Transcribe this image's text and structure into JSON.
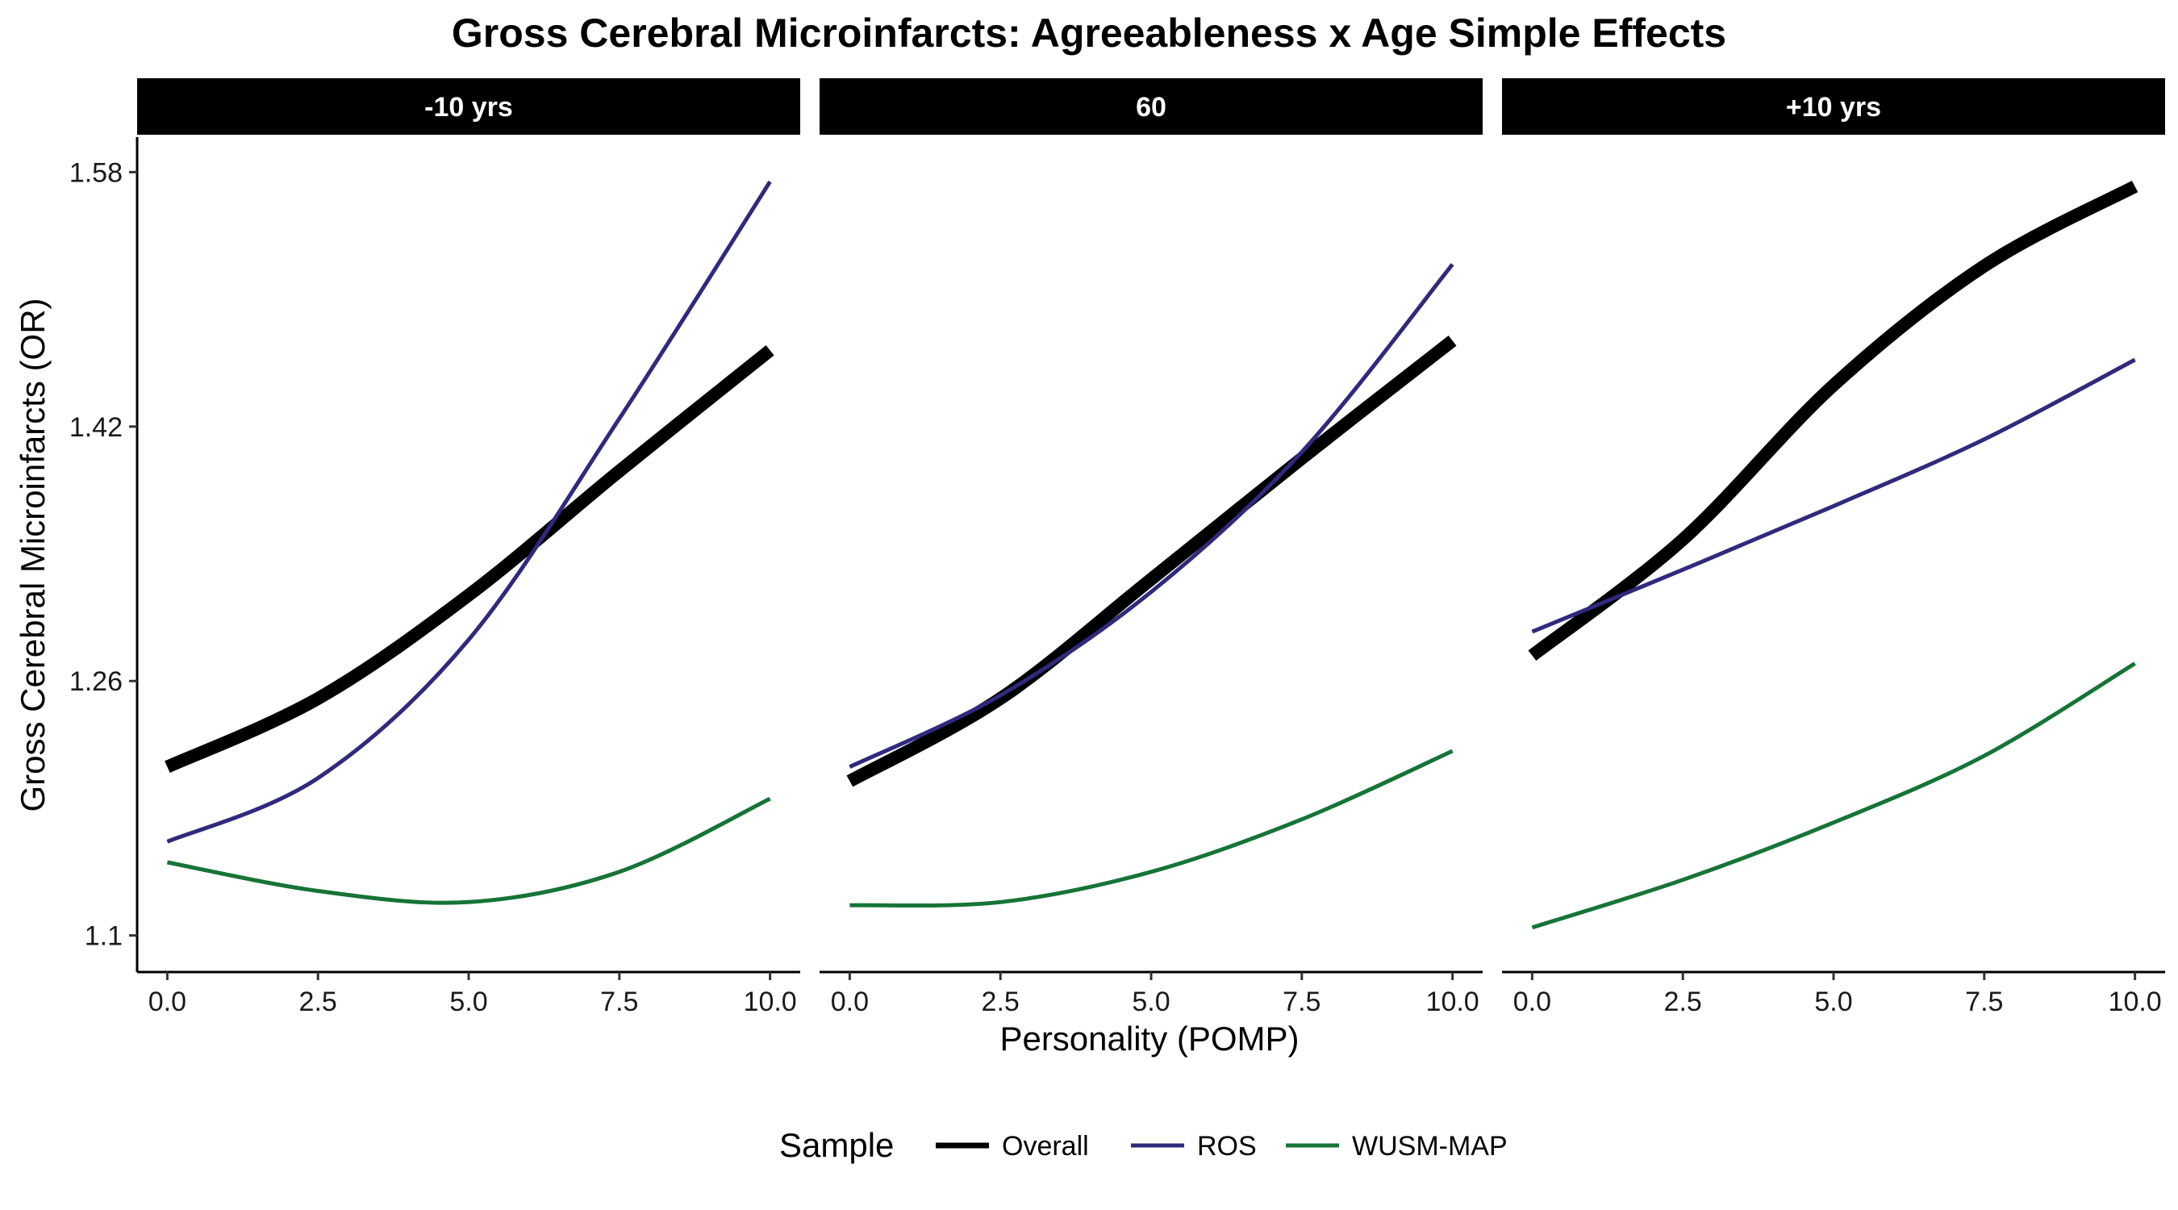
{
  "chart_data": {
    "type": "line",
    "title": "Gross Cerebral Microinfarcts: Agreeableness x Age Simple Effects",
    "xlabel": "Personality (POMP)",
    "ylabel": "Gross Cerebral Microinfarcts (OR)",
    "xlim": [
      -0.5,
      10.5
    ],
    "ylim": [
      1.077,
      1.602
    ],
    "x_ticks": [
      0,
      2.5,
      5,
      7.5,
      10
    ],
    "x_tick_labels": [
      "0.0",
      "2.5",
      "5.0",
      "7.5",
      "10.0"
    ],
    "y_ticks": [
      1.1,
      1.26,
      1.42,
      1.58
    ],
    "y_tick_labels": [
      "1.1",
      "1.26",
      "1.42",
      "1.58"
    ],
    "grid": false,
    "legend": {
      "title": "Sample",
      "position": "bottom",
      "entries": [
        "Overall",
        "ROS",
        "WUSM-MAP"
      ]
    },
    "colors": {
      "Overall": "#000000",
      "ROS": "#2e2a7d",
      "WUSM-MAP": "#167436"
    },
    "x": [
      0,
      2.5,
      5,
      7.5,
      10
    ],
    "panels": [
      {
        "label": "-10 yrs",
        "series": [
          {
            "name": "Overall",
            "values": [
              1.206,
              1.249,
              1.314,
              1.392,
              1.468
            ]
          },
          {
            "name": "ROS",
            "values": [
              1.159,
              1.199,
              1.286,
              1.425,
              1.574
            ]
          },
          {
            "name": "WUSM-MAP",
            "values": [
              1.146,
              1.128,
              1.121,
              1.14,
              1.186
            ]
          }
        ]
      },
      {
        "label": "60",
        "series": [
          {
            "name": "Overall",
            "values": [
              1.197,
              1.249,
              1.324,
              1.4,
              1.474
            ]
          },
          {
            "name": "ROS",
            "values": [
              1.206,
              1.251,
              1.316,
              1.404,
              1.522
            ]
          },
          {
            "name": "WUSM-MAP",
            "values": [
              1.119,
              1.121,
              1.14,
              1.173,
              1.216
            ]
          }
        ]
      },
      {
        "label": "+10 yrs",
        "series": [
          {
            "name": "Overall",
            "values": [
              1.276,
              1.349,
              1.446,
              1.521,
              1.571
            ]
          },
          {
            "name": "ROS",
            "values": [
              1.291,
              1.33,
              1.37,
              1.412,
              1.462
            ]
          },
          {
            "name": "WUSM-MAP",
            "values": [
              1.105,
              1.135,
              1.171,
              1.213,
              1.271
            ]
          }
        ]
      }
    ]
  }
}
